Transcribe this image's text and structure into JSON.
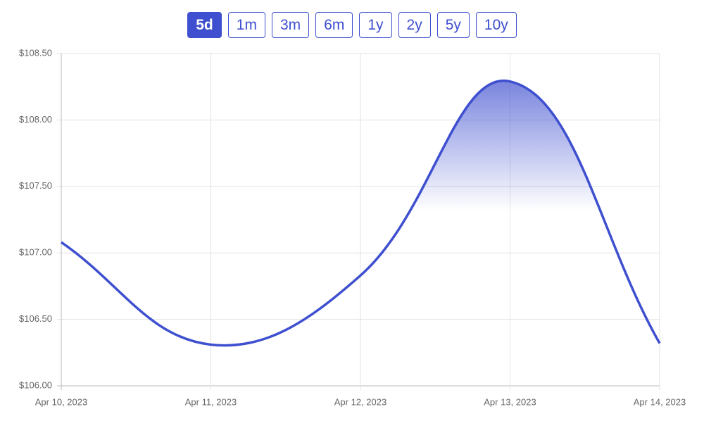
{
  "range_buttons": [
    "5d",
    "1m",
    "3m",
    "6m",
    "1y",
    "2y",
    "5y",
    "10y"
  ],
  "selected_range": "5d",
  "chart_data": {
    "type": "line",
    "categories": [
      "Apr 10, 2023",
      "Apr 11, 2023",
      "Apr 12, 2023",
      "Apr 13, 2023",
      "Apr 14, 2023"
    ],
    "series": [
      {
        "color": "#3e4fcf",
        "values": [
          107.08,
          106.31,
          106.83,
          108.29,
          106.32
        ]
      }
    ],
    "ylim": [
      106,
      108.5
    ],
    "yticks": [
      {
        "value": 106,
        "label": "$106.00"
      },
      {
        "value": 106.5,
        "label": "$106.50"
      },
      {
        "value": 107,
        "label": "$107.00"
      },
      {
        "value": 107.5,
        "label": "$107.50"
      },
      {
        "value": 108,
        "label": "$108.00"
      },
      {
        "value": 108.5,
        "label": "$108.50"
      }
    ],
    "grid": true
  }
}
